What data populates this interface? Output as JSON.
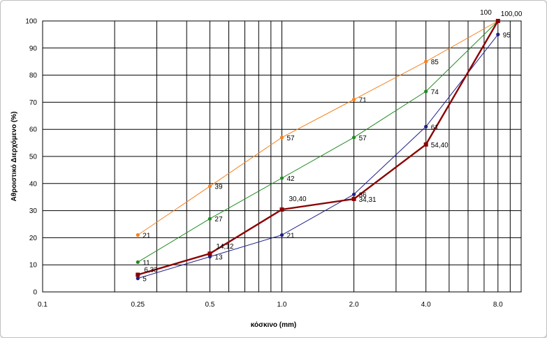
{
  "chart_data": {
    "type": "line",
    "title": "",
    "xlabel": "κόσκινο (mm)",
    "ylabel": "Αθροιστικό Διερχόμενο (%)",
    "x_scale": "log",
    "xlim": [
      0.1,
      10
    ],
    "ylim": [
      0,
      100
    ],
    "y_ticks": [
      0,
      10,
      20,
      30,
      40,
      50,
      60,
      70,
      80,
      90,
      100
    ],
    "x_ticks": [
      {
        "value": 0.1,
        "label": "0.1"
      },
      {
        "value": 0.25,
        "label": "0.25"
      },
      {
        "value": 0.5,
        "label": "0.5"
      },
      {
        "value": 1,
        "label": "1.0"
      },
      {
        "value": 2,
        "label": "2.0"
      },
      {
        "value": 4,
        "label": "4.0"
      },
      {
        "value": 8,
        "label": "8.0"
      }
    ],
    "grid": true,
    "legend": "none",
    "series": [
      {
        "color": "#f5821f",
        "marker": "circle",
        "points": [
          {
            "x": 0.25,
            "y": 21,
            "label": "21"
          },
          {
            "x": 0.5,
            "y": 39,
            "label": "39"
          },
          {
            "x": 1,
            "y": 57,
            "label": "57"
          },
          {
            "x": 2,
            "y": 71,
            "label": "71"
          },
          {
            "x": 4,
            "y": 85,
            "label": "85"
          },
          {
            "x": 8,
            "y": 100,
            "label": "100"
          }
        ]
      },
      {
        "color": "#1f8c1f",
        "marker": "circle",
        "points": [
          {
            "x": 0.25,
            "y": 11,
            "label": "11"
          },
          {
            "x": 0.5,
            "y": 27,
            "label": "27"
          },
          {
            "x": 1,
            "y": 42,
            "label": "42"
          },
          {
            "x": 2,
            "y": 57,
            "label": "57"
          },
          {
            "x": 4,
            "y": 74,
            "label": "74"
          },
          {
            "x": 8,
            "y": 100,
            "label": ""
          }
        ]
      },
      {
        "color": "#1f1f8c",
        "marker": "circle",
        "points": [
          {
            "x": 0.25,
            "y": 5,
            "label": "5"
          },
          {
            "x": 0.5,
            "y": 13,
            "label": "13"
          },
          {
            "x": 1,
            "y": 21,
            "label": "21"
          },
          {
            "x": 2,
            "y": 36,
            "label": "36"
          },
          {
            "x": 4,
            "y": 61,
            "label": "61"
          },
          {
            "x": 8,
            "y": 95,
            "label": "95"
          }
        ]
      },
      {
        "color": "#8b0000",
        "marker": "square",
        "points": [
          {
            "x": 0.25,
            "y": 6.33,
            "label": "6,33"
          },
          {
            "x": 0.5,
            "y": 14.12,
            "label": "14,12"
          },
          {
            "x": 1,
            "y": 30.4,
            "label": "30,40"
          },
          {
            "x": 2,
            "y": 34.31,
            "label": "34,31"
          },
          {
            "x": 4,
            "y": 54.4,
            "label": "54,40"
          },
          {
            "x": 8,
            "y": 100,
            "label": "100,00"
          }
        ]
      }
    ]
  }
}
